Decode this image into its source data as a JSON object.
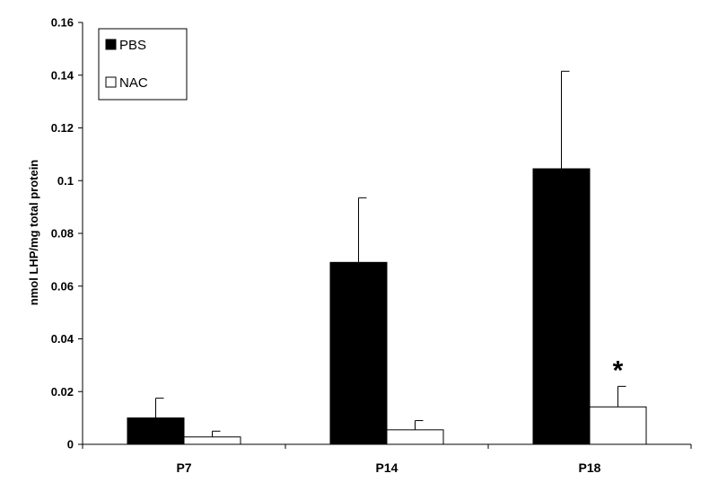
{
  "chart_data": {
    "type": "bar",
    "title": "",
    "xlabel": "",
    "ylabel": "nmol LHP/mg total protein",
    "ylim": [
      0,
      0.16
    ],
    "yticks": [
      "0",
      "0.02",
      "0.04",
      "0.06",
      "0.08",
      "0.1",
      "0.12",
      "0.14",
      "0.16"
    ],
    "categories": [
      "P7",
      "P14",
      "P18"
    ],
    "series": [
      {
        "name": "PBS",
        "color": "#000000",
        "values": [
          0.01,
          0.069,
          0.1045
        ],
        "errors": [
          0.0075,
          0.0245,
          0.037
        ]
      },
      {
        "name": "NAC",
        "color": "#ffffff",
        "values": [
          0.0028,
          0.0055,
          0.0142
        ],
        "errors": [
          0.0022,
          0.0035,
          0.0078
        ]
      }
    ],
    "annotations": [
      {
        "text": "*",
        "category": "P18",
        "series": "NAC"
      }
    ],
    "legend": {
      "position": "top-left"
    },
    "grid": false
  }
}
